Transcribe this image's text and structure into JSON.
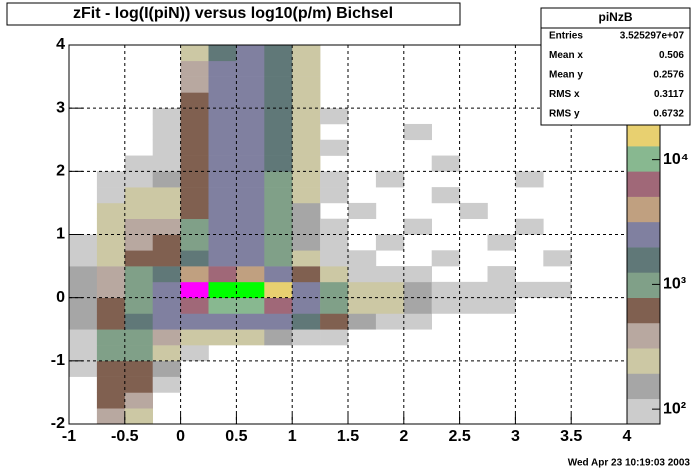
{
  "chart_data": {
    "type": "heatmap",
    "title": "zFit - log(I(piN)) versus log10(p/m) Bichsel",
    "date": "Wed Apr 23 10:19:03 2003",
    "xlim": [
      -1,
      4
    ],
    "xticks": [
      -1,
      -0.5,
      0,
      0.5,
      1,
      1.5,
      2,
      2.5,
      3,
      3.5,
      4
    ],
    "ylim": [
      -2,
      4
    ],
    "yticks": [
      -2,
      -1,
      0,
      1,
      2,
      3,
      4
    ],
    "zlim": [
      76,
      83000
    ],
    "zlog": true,
    "zticks": [
      {
        "value": 100,
        "label": "10²"
      },
      {
        "value": 1000,
        "label": "10³"
      },
      {
        "value": 10000,
        "label": "10⁴"
      }
    ],
    "grid": true,
    "palette": [
      "#cccccc",
      "#a6a6a6",
      "#ccc8a4",
      "#b8a8a0",
      "#806050",
      "#80a088",
      "#607878",
      "#8080a0",
      "#c0a080",
      "#a06878",
      "#88b890",
      "#e8d070",
      "#ff0000",
      "#ff00ff",
      "#00ff00"
    ],
    "xbins": [
      -1,
      -0.75,
      -0.5,
      -0.25,
      0,
      0.25,
      0.5,
      0.75,
      1,
      1.25,
      1.5,
      1.75,
      2,
      2.25,
      2.5,
      2.75,
      3,
      3.25,
      3.5,
      3.75,
      4
    ],
    "ybins": [
      -2,
      -1.75,
      -1.5,
      -1.25,
      -1,
      -0.75,
      -0.5,
      -0.25,
      0,
      0.25,
      0.5,
      0.75,
      1,
      1.25,
      1.5,
      1.75,
      2,
      2.25,
      2.5,
      2.75,
      3,
      3.25,
      3.5,
      3.75,
      4
    ],
    "z": [
      [
        0,
        400,
        300,
        0,
        0,
        0,
        0,
        0,
        0,
        0,
        0,
        0,
        0,
        0,
        0,
        0,
        0,
        0,
        0,
        0
      ],
      [
        0,
        500,
        400,
        0,
        0,
        0,
        0,
        0,
        0,
        0,
        0,
        0,
        0,
        0,
        0,
        0,
        0,
        0,
        0,
        0
      ],
      [
        0,
        600,
        500,
        100,
        0,
        0,
        0,
        0,
        0,
        0,
        0,
        0,
        0,
        0,
        0,
        0,
        0,
        0,
        0,
        0
      ],
      [
        80,
        700,
        600,
        150,
        0,
        0,
        0,
        0,
        0,
        0,
        0,
        0,
        0,
        0,
        0,
        0,
        0,
        0,
        0,
        0
      ],
      [
        100,
        800,
        800,
        200,
        100,
        0,
        0,
        0,
        0,
        0,
        0,
        0,
        0,
        0,
        0,
        0,
        0,
        0,
        0,
        0
      ],
      [
        120,
        900,
        1000,
        400,
        300,
        200,
        200,
        150,
        100,
        80,
        0,
        0,
        0,
        0,
        0,
        0,
        0,
        0,
        0,
        0
      ],
      [
        150,
        700,
        1500,
        2500,
        3000,
        3000,
        3000,
        2500,
        1500,
        600,
        150,
        100,
        80,
        0,
        0,
        0,
        0,
        0,
        0,
        0
      ],
      [
        150,
        500,
        1200,
        3000,
        8000,
        10000,
        10000,
        8000,
        3000,
        800,
        300,
        200,
        150,
        100,
        80,
        80,
        0,
        0,
        0,
        0
      ],
      [
        150,
        400,
        1000,
        3000,
        40000,
        60000,
        60000,
        20000,
        3000,
        800,
        300,
        200,
        150,
        120,
        100,
        80,
        80,
        80,
        0,
        0
      ],
      [
        150,
        400,
        800,
        1500,
        4000,
        6000,
        5000,
        2000,
        600,
        200,
        100,
        80,
        80,
        0,
        0,
        80,
        0,
        0,
        0,
        0
      ],
      [
        100,
        300,
        500,
        700,
        1500,
        3000,
        2500,
        800,
        200,
        100,
        80,
        0,
        0,
        80,
        0,
        0,
        0,
        80,
        0,
        0
      ],
      [
        80,
        300,
        400,
        500,
        1000,
        2500,
        2500,
        800,
        150,
        80,
        0,
        80,
        0,
        0,
        0,
        80,
        0,
        0,
        0,
        0
      ],
      [
        0,
        250,
        350,
        400,
        800,
        2500,
        2500,
        1000,
        150,
        80,
        0,
        0,
        80,
        0,
        0,
        0,
        80,
        0,
        0,
        0
      ],
      [
        0,
        200,
        300,
        300,
        700,
        2500,
        2500,
        1000,
        150,
        0,
        80,
        0,
        0,
        0,
        80,
        0,
        0,
        0,
        0,
        0
      ],
      [
        0,
        100,
        200,
        200,
        600,
        2500,
        2500,
        1200,
        200,
        80,
        0,
        0,
        0,
        80,
        0,
        0,
        0,
        0,
        0,
        0
      ],
      [
        0,
        80,
        100,
        150,
        500,
        2500,
        2500,
        1200,
        200,
        80,
        0,
        80,
        0,
        0,
        0,
        0,
        80,
        0,
        0,
        0
      ],
      [
        0,
        0,
        80,
        100,
        500,
        2500,
        2500,
        1500,
        200,
        0,
        0,
        0,
        0,
        80,
        0,
        0,
        0,
        0,
        0,
        0
      ],
      [
        0,
        0,
        0,
        100,
        500,
        2500,
        2500,
        1500,
        250,
        80,
        0,
        0,
        0,
        0,
        0,
        0,
        0,
        0,
        0,
        0
      ],
      [
        0,
        0,
        0,
        80,
        500,
        2000,
        2500,
        1500,
        300,
        0,
        0,
        0,
        80,
        0,
        0,
        0,
        0,
        0,
        0,
        0
      ],
      [
        0,
        0,
        0,
        80,
        500,
        2000,
        2500,
        1500,
        300,
        80,
        0,
        0,
        0,
        0,
        0,
        0,
        0,
        0,
        0,
        0
      ],
      [
        0,
        0,
        0,
        0,
        500,
        2000,
        2500,
        1500,
        300,
        0,
        0,
        0,
        0,
        0,
        0,
        0,
        0,
        0,
        0,
        0
      ],
      [
        0,
        0,
        0,
        0,
        400,
        2000,
        2500,
        1500,
        300,
        0,
        0,
        0,
        0,
        0,
        0,
        0,
        0,
        0,
        0,
        0
      ],
      [
        0,
        0,
        0,
        0,
        400,
        2000,
        2500,
        1500,
        250,
        0,
        0,
        0,
        0,
        0,
        0,
        0,
        0,
        0,
        0,
        0
      ],
      [
        0,
        0,
        0,
        0,
        300,
        1800,
        2500,
        1500,
        200,
        0,
        0,
        0,
        0,
        0,
        0,
        0,
        0,
        0,
        0,
        0
      ]
    ],
    "stats": {
      "title": "piNzB",
      "rows": [
        {
          "name": "Entries",
          "value": "3.525297e+07"
        },
        {
          "name": "Mean x",
          "value": "0.506"
        },
        {
          "name": "Mean y",
          "value": "0.2576"
        },
        {
          "name": "RMS x",
          "value": "0.3117"
        },
        {
          "name": "RMS y",
          "value": "0.6732"
        }
      ]
    }
  }
}
